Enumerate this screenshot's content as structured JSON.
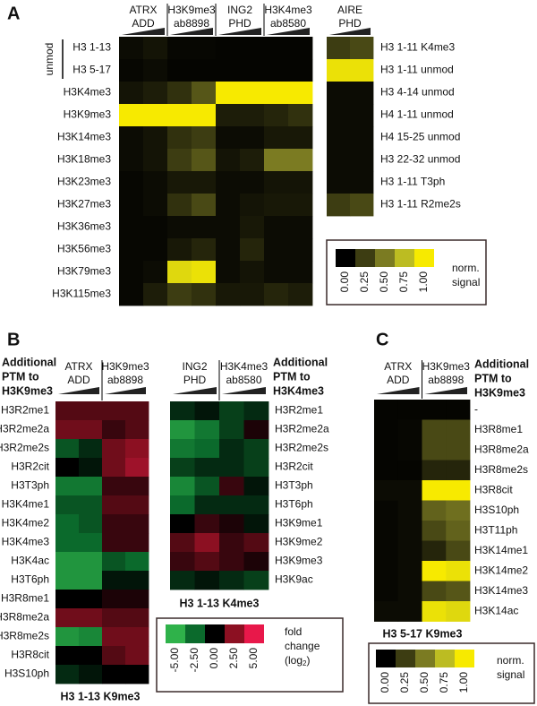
{
  "chart_data": [
    {
      "type": "heatmap",
      "panel": "A",
      "colorbar": {
        "ticks": [
          {
            "value": 0,
            "label": "0.00"
          },
          {
            "value": 0.25,
            "label": "0.25"
          },
          {
            "value": 0.5,
            "label": "0.50"
          },
          {
            "value": 0.75,
            "label": "0.75"
          },
          {
            "value": 1,
            "label": "1.00"
          }
        ],
        "colors": [
          "#000000",
          "#3d3d12",
          "#7b7b22",
          "#bcbc22",
          "#f7ea00"
        ],
        "label": [
          "norm.",
          "signal"
        ]
      },
      "heatmaps": [
        {
          "column_groups": [
            [
              "ATRX",
              "ADD"
            ],
            [
              "H3K9me3",
              "ab8898"
            ],
            [
              "ING2",
              "PHD"
            ],
            [
              "H3K4me3",
              "ab8580"
            ]
          ],
          "row_group_label": "unmod",
          "rows": [
            "H3 1-13",
            "H3 5-17",
            "H3K4me3",
            "H3K9me3",
            "H3K14me3",
            "H3K18me3",
            "H3K23me3",
            "H3K27me3",
            "H3K36me3",
            "H3K56me3",
            "H3K79me3",
            "H3K115me3"
          ],
          "values": [
            [
              0.05,
              0.08,
              0.03,
              0.03,
              0.02,
              0.02,
              0.02,
              0.02
            ],
            [
              0.03,
              0.05,
              0.02,
              0.02,
              0.02,
              0.02,
              0.02,
              0.02
            ],
            [
              0.08,
              0.12,
              0.2,
              0.35,
              1,
              1,
              1,
              1
            ],
            [
              1,
              1,
              1,
              1,
              0.12,
              0.12,
              0.15,
              0.2
            ],
            [
              0.05,
              0.08,
              0.2,
              0.25,
              0.05,
              0.05,
              0.1,
              0.1
            ],
            [
              0.05,
              0.08,
              0.25,
              0.35,
              0.08,
              0.12,
              0.5,
              0.5
            ],
            [
              0.03,
              0.05,
              0.1,
              0.1,
              0.05,
              0.05,
              0.08,
              0.08
            ],
            [
              0.03,
              0.05,
              0.2,
              0.3,
              0.05,
              0.08,
              0.1,
              0.1
            ],
            [
              0.03,
              0.03,
              0.05,
              0.05,
              0.05,
              0.1,
              0.05,
              0.05
            ],
            [
              0.03,
              0.03,
              0.1,
              0.15,
              0.05,
              0.15,
              0.05,
              0.05
            ],
            [
              0.03,
              0.05,
              0.9,
              0.95,
              0.05,
              0.08,
              0.05,
              0.05
            ],
            [
              0.03,
              0.12,
              0.25,
              0.2,
              0.1,
              0.1,
              0.15,
              0.12
            ]
          ]
        },
        {
          "column_groups": [
            [
              "AIRE",
              "PHD"
            ]
          ],
          "rows": [
            "H3 1-11 K4me3",
            "H3 1-11 unmod",
            "H3 4-14 unmod",
            "H4 1-11 unmod",
            "H4 15-25 unmod",
            "H3 22-32 unmod",
            "H3 1-11 T3ph",
            "H3 1-11 R2me2s"
          ],
          "values": [
            [
              0.25,
              0.3
            ],
            [
              0.95,
              0.95
            ],
            [
              0.05,
              0.05
            ],
            [
              0.05,
              0.05
            ],
            [
              0.05,
              0.05
            ],
            [
              0.05,
              0.05
            ],
            [
              0.05,
              0.05
            ],
            [
              0.25,
              0.3
            ]
          ]
        }
      ]
    },
    {
      "type": "heatmap",
      "panel": "B",
      "colorbar": {
        "ticks": [
          {
            "value": -5,
            "label": "-5.00"
          },
          {
            "value": -2.5,
            "label": "-2.50"
          },
          {
            "value": 0,
            "label": "0.00"
          },
          {
            "value": 2.5,
            "label": "2.50"
          },
          {
            "value": 5,
            "label": "5.00"
          }
        ],
        "colors": [
          "#2fb24a",
          "#0b6a2c",
          "#000000",
          "#8c1022",
          "#e8184a"
        ],
        "label": [
          "fold",
          "change"
        ],
        "unit": [
          "(log",
          "2",
          ")"
        ]
      },
      "heatmaps": [
        {
          "row_header": [
            "Additional",
            "PTM to",
            "H3K9me3"
          ],
          "title": "H3 1-13 K9me3",
          "column_groups": [
            [
              "ATRX",
              "ADD"
            ],
            [
              "H3K9me3",
              "ab8898"
            ]
          ],
          "rows": [
            "H3R2me1",
            "H3R2me2a",
            "H3R2me2s",
            "H3R2cit",
            "H3T3ph",
            "H3K4me1",
            "H3K4me2",
            "H3K4me3",
            "H3K4ac",
            "H3T6ph",
            "H3R8me1",
            "H3R8me2a",
            "H3R8me2s",
            "H3R8cit",
            "H3S10ph"
          ],
          "values": [
            [
              1.5,
              1.5,
              1.5,
              1.5
            ],
            [
              2,
              2,
              1,
              1.5
            ],
            [
              -2,
              -1,
              2,
              2.5
            ],
            [
              0,
              -0.5,
              2,
              3
            ],
            [
              -3,
              -3,
              1,
              1
            ],
            [
              -2,
              -2,
              1.5,
              1.5
            ],
            [
              -2.5,
              -2,
              1,
              1
            ],
            [
              -2.5,
              -2.5,
              1,
              1
            ],
            [
              -4,
              -4,
              -2,
              -2.5
            ],
            [
              -4,
              -4,
              -0.5,
              -0.5
            ],
            [
              0,
              0,
              0.5,
              0.5
            ],
            [
              2,
              2,
              1.5,
              1.5
            ],
            [
              -4,
              -3.5,
              2,
              2
            ],
            [
              0,
              0,
              1.5,
              2
            ],
            [
              -1,
              -0.5,
              0,
              0
            ]
          ]
        },
        {
          "row_header": [
            "Additional",
            "PTM to",
            "H3K4me3"
          ],
          "title": "H3 1-13 K4me3",
          "column_groups": [
            [
              "ING2",
              "PHD"
            ],
            [
              "H3K4me3",
              "ab8580"
            ]
          ],
          "rows": [
            "H3R2me1",
            "H3R2me2a",
            "H3R2me2s",
            "H3R2cit",
            "H3T3ph",
            "H3T6ph",
            "H3K9me1",
            "H3K9me2",
            "H3K9me3",
            "H3K9ac"
          ],
          "values": [
            [
              -1,
              -0.5,
              -1.5,
              -1
            ],
            [
              -4,
              -3,
              -1.5,
              0.5
            ],
            [
              -3,
              -2.5,
              -1,
              -1.5
            ],
            [
              -1.5,
              -1,
              -1,
              -1.5
            ],
            [
              -3.5,
              -2,
              1,
              -0.5
            ],
            [
              -2.5,
              -1,
              -1,
              -1
            ],
            [
              0,
              1,
              0.5,
              -0.5
            ],
            [
              1.5,
              2.5,
              1,
              1.5
            ],
            [
              1,
              1.5,
              1,
              0.5
            ],
            [
              -1,
              -0.5,
              -1,
              -1.5
            ]
          ]
        }
      ]
    },
    {
      "type": "heatmap",
      "panel": "C",
      "colorbar": {
        "ticks": [
          {
            "value": 0,
            "label": "0.00"
          },
          {
            "value": 0.25,
            "label": "0.25"
          },
          {
            "value": 0.5,
            "label": "0.50"
          },
          {
            "value": 0.75,
            "label": "0.75"
          },
          {
            "value": 1,
            "label": "1.00"
          }
        ],
        "colors": [
          "#000000",
          "#3d3d12",
          "#7b7b22",
          "#bcbc22",
          "#f7ea00"
        ],
        "label": [
          "norm.",
          "signal"
        ]
      },
      "heatmaps": [
        {
          "row_header": [
            "Additional",
            "PTM to",
            "H3K9me3"
          ],
          "title": "H3 5-17 K9me3",
          "column_groups": [
            [
              "ATRX",
              "ADD"
            ],
            [
              "H3K9me3",
              "ab8898"
            ]
          ],
          "rows": [
            "-",
            "H3R8me1",
            "H3R8me2a",
            "H3R8me2s",
            "H3R8cit",
            "H3S10ph",
            "H3T11ph",
            "H3K14me1",
            "H3K14me2",
            "H3K14me3",
            "H3K14ac"
          ],
          "values": [
            [
              0.02,
              0.02,
              0.02,
              0.02
            ],
            [
              0.02,
              0.03,
              0.3,
              0.3
            ],
            [
              0.02,
              0.03,
              0.3,
              0.3
            ],
            [
              0.02,
              0.02,
              0.15,
              0.15
            ],
            [
              0.05,
              0.05,
              1,
              1
            ],
            [
              0.03,
              0.05,
              0.4,
              0.45
            ],
            [
              0.03,
              0.05,
              0.3,
              0.4
            ],
            [
              0.03,
              0.05,
              0.15,
              0.3
            ],
            [
              0.03,
              0.05,
              1,
              0.95
            ],
            [
              0.03,
              0.05,
              0.3,
              0.35
            ],
            [
              0.05,
              0.05,
              0.95,
              0.9
            ]
          ]
        }
      ]
    }
  ]
}
